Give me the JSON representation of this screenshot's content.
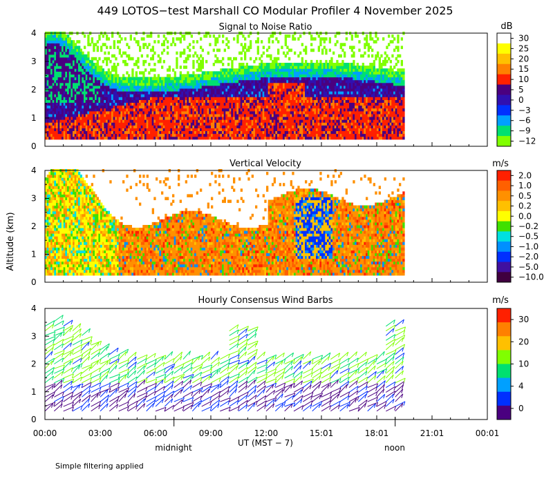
{
  "title": "449 LOTOS−test Marshall CO Modular Profiler  4 November 2025",
  "ylabel": "Altitude (km)",
  "xlabel": "UT  (MST − 7)",
  "x_ticks": [
    "00:00",
    "03:00",
    "06:00",
    "09:00",
    "12:00",
    "15:01",
    "18:01",
    "21:01",
    "00:01"
  ],
  "local_markers": [
    "midnight",
    "noon"
  ],
  "footnote": "Simple filtering applied",
  "chart_data": [
    {
      "type": "heatmap",
      "title": "Signal to Noise Ratio",
      "unit": "dB",
      "x_range_hours": [
        0,
        24
      ],
      "data_end_hours": 19.5,
      "ylim": [
        0,
        4
      ],
      "y_ticks": [
        "0",
        "1",
        "2",
        "3",
        "4"
      ],
      "colorbar_labels": [
        "30",
        "25",
        "20",
        "15",
        "10",
        "5",
        "0",
        "−3",
        "−6",
        "−9",
        "−12"
      ],
      "colorbar_colors": [
        "#ffffff",
        "#ffff00",
        "#ffc000",
        "#ff8000",
        "#ff2000",
        "#4a0080",
        "#3010b0",
        "#0030ff",
        "#00a0ff",
        "#00e070",
        "#80ff00"
      ],
      "grid": false
    },
    {
      "type": "heatmap",
      "title": "Vertical Velocity",
      "unit": "m/s",
      "x_range_hours": [
        0,
        24
      ],
      "data_end_hours": 19.5,
      "ylim": [
        0,
        4
      ],
      "y_ticks": [
        "0",
        "1",
        "2",
        "3",
        "4"
      ],
      "colorbar_labels": [
        "2.0",
        "1.0",
        "0.5",
        "0.2",
        "0.0",
        "−0.2",
        "−0.5",
        "−1.0",
        "−2.0",
        "−5.0",
        "−10.0"
      ],
      "colorbar_colors": [
        "#ff2000",
        "#ff6000",
        "#ff9000",
        "#ffc000",
        "#ffff00",
        "#40e000",
        "#00e0e0",
        "#0090ff",
        "#0030ff",
        "#4010a0",
        "#400040"
      ],
      "grid": false
    },
    {
      "type": "scatter",
      "title": "Hourly Consensus Wind Barbs",
      "unit": "m/s",
      "x_range_hours": [
        0,
        24
      ],
      "data_end_hours": 19.5,
      "ylim": [
        0,
        4
      ],
      "y_ticks": [
        "0",
        "1",
        "2",
        "3",
        "4"
      ],
      "colorbar_labels": [
        "30",
        "20",
        "10",
        "4",
        "0"
      ],
      "colorbar_colors": [
        "#ff2000",
        "#ff8000",
        "#ffc000",
        "#80ff00",
        "#00e070",
        "#00a0ff",
        "#0030ff",
        "#4a0080"
      ],
      "grid": false
    }
  ]
}
